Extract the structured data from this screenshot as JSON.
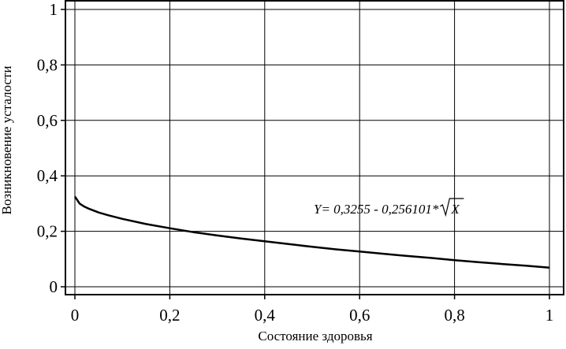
{
  "chart_data": {
    "type": "line",
    "title": "",
    "xlabel": "Состояние здоровья",
    "ylabel": "Возникновение усталости",
    "xlim": [
      0,
      1
    ],
    "ylim": [
      0,
      1
    ],
    "grid": true,
    "xticks": [
      0,
      0.2,
      0.4,
      0.6,
      0.8,
      1
    ],
    "xtick_labels": [
      "0",
      "0,2",
      "0,4",
      "0,6",
      "0,8",
      "1"
    ],
    "yticks": [
      0,
      0.2,
      0.4,
      0.6,
      0.8,
      1
    ],
    "ytick_labels": [
      "0",
      "0,2",
      "0,4",
      "0,6",
      "0,8",
      "1"
    ],
    "annotation": {
      "prefix": "Y= 0,3255 - 0,256101*",
      "radicand": "X"
    },
    "series": [
      {
        "x": [
          0,
          0.01,
          0.02,
          0.03,
          0.05,
          0.07,
          0.1,
          0.15,
          0.2,
          0.25,
          0.3,
          0.35,
          0.4,
          0.45,
          0.5,
          0.55,
          0.6,
          0.65,
          0.7,
          0.75,
          0.8,
          0.85,
          0.9,
          0.95,
          1
        ],
        "y": [
          0.3255,
          0.3,
          0.289,
          0.281,
          0.268,
          0.258,
          0.245,
          0.226,
          0.211,
          0.197,
          0.185,
          0.174,
          0.164,
          0.154,
          0.144,
          0.135,
          0.127,
          0.119,
          0.111,
          0.104,
          0.096,
          0.089,
          0.082,
          0.076,
          0.069
        ],
        "color": "#000000"
      }
    ]
  }
}
